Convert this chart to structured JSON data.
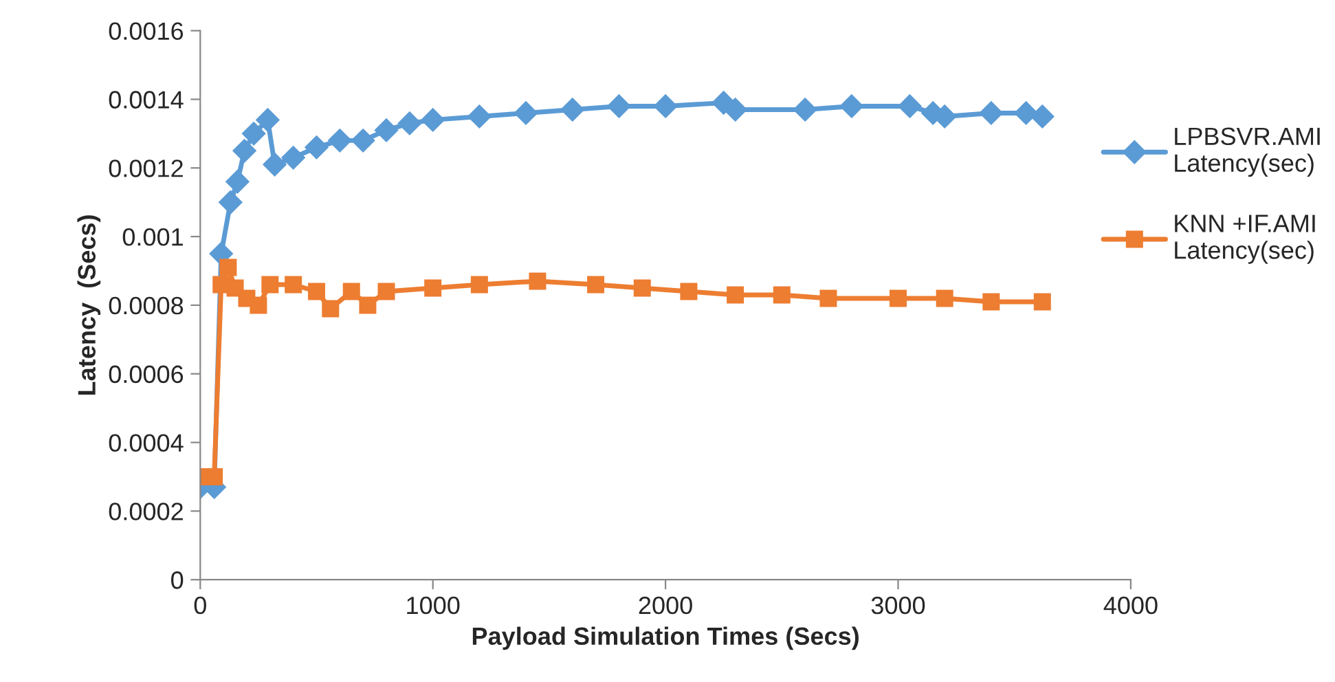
{
  "chart_data": {
    "type": "line",
    "xlabel": "Payload Simulation Times (Secs)",
    "ylabel": "Latency  (Secs)",
    "xlim": [
      0,
      4000
    ],
    "xticks": [
      0,
      1000,
      2000,
      3000,
      4000
    ],
    "ylim": [
      0,
      0.0016
    ],
    "yticks": [
      0,
      0.0002,
      0.0004,
      0.0006,
      0.0008,
      0.001,
      0.0012,
      0.0014,
      0.0016
    ],
    "grid": false,
    "legend": "right",
    "series": [
      {
        "name": "LPBSVR.AMI Latency(sec)",
        "color": "#5b9bd5",
        "marker": "diamond",
        "x": [
          0,
          60,
          90,
          130,
          160,
          190,
          230,
          290,
          320,
          400,
          500,
          600,
          700,
          800,
          900,
          1000,
          1200,
          1400,
          1600,
          1800,
          2000,
          2250,
          2300,
          2600,
          2800,
          3050,
          3150,
          3200,
          3400,
          3550,
          3620
        ],
        "values": [
          0.00027,
          0.00027,
          0.00095,
          0.0011,
          0.00116,
          0.00125,
          0.0013,
          0.00134,
          0.00121,
          0.00123,
          0.00126,
          0.00128,
          0.00128,
          0.00131,
          0.00133,
          0.00134,
          0.00135,
          0.00136,
          0.00137,
          0.00138,
          0.00138,
          0.00139,
          0.00137,
          0.00137,
          0.00138,
          0.00138,
          0.00136,
          0.00135,
          0.00136,
          0.00136,
          0.00135
        ]
      },
      {
        "name": "KNN +IF.AMI Latency(sec)",
        "color": "#ed7d31",
        "marker": "square",
        "x": [
          0,
          60,
          90,
          120,
          150,
          200,
          250,
          300,
          400,
          500,
          560,
          650,
          720,
          800,
          1000,
          1200,
          1450,
          1700,
          1900,
          2100,
          2300,
          2500,
          2700,
          3000,
          3200,
          3400,
          3620
        ],
        "values": [
          0.0003,
          0.0003,
          0.00086,
          0.00091,
          0.00085,
          0.00082,
          0.0008,
          0.00086,
          0.00086,
          0.00084,
          0.00079,
          0.00084,
          0.0008,
          0.00084,
          0.00085,
          0.00086,
          0.00087,
          0.00086,
          0.00085,
          0.00084,
          0.00083,
          0.00083,
          0.00082,
          0.00082,
          0.00082,
          0.00081,
          0.00081
        ]
      }
    ]
  }
}
